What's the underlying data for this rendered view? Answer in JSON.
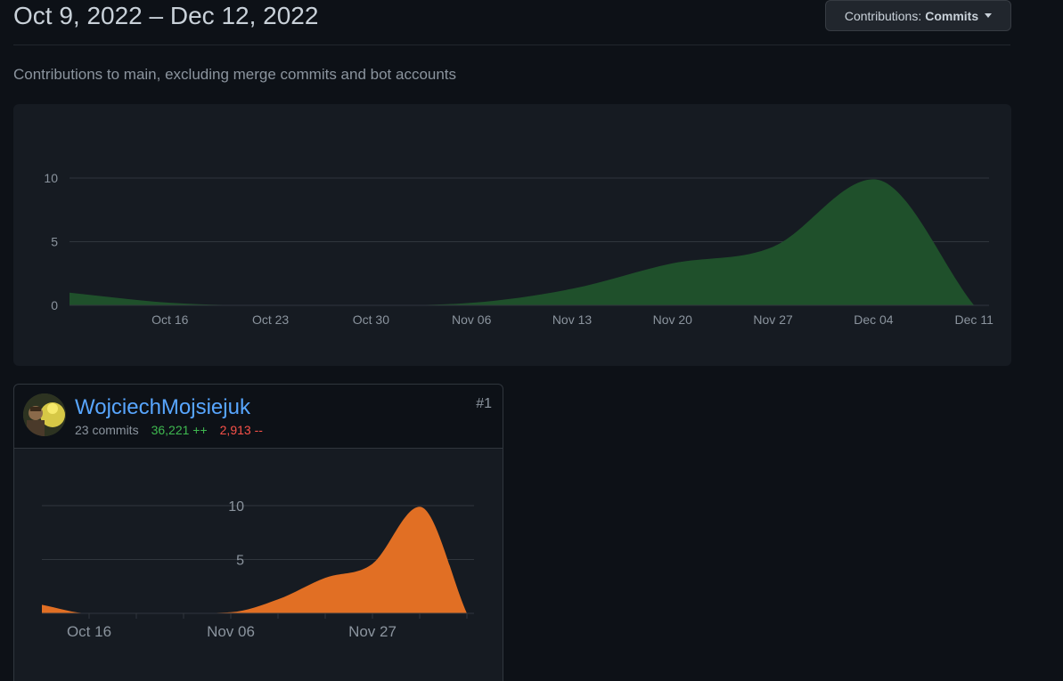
{
  "header": {
    "date_range": "Oct 9, 2022 – Dec 12, 2022",
    "filter_label": "Contributions:",
    "filter_value": "Commits"
  },
  "subtitle": "Contributions to main, excluding merge commits and bot accounts",
  "colors": {
    "main_area": "#1f502b",
    "contributor_area": "#e16f24",
    "gridline": "#30363d",
    "tick_text": "#8b949e",
    "link": "#58a6ff",
    "additions": "#3fb950",
    "deletions": "#f85149"
  },
  "contributor": {
    "name": "WojciechMojsiejuk",
    "commits": "23 commits",
    "additions": "36,221 ++",
    "deletions": "2,913 --",
    "rank": "#1",
    "avatar_icon": "user-avatar-icon"
  },
  "chart_data": [
    {
      "type": "area",
      "title": "",
      "xlabel": "",
      "ylabel": "",
      "x": [
        "Oct 09",
        "Oct 16",
        "Oct 23",
        "Oct 30",
        "Nov 06",
        "Nov 13",
        "Nov 20",
        "Nov 27",
        "Dec 04",
        "Dec 11"
      ],
      "values": [
        1,
        0.2,
        0,
        0,
        0.2,
        1.3,
        3.3,
        4.6,
        9.9,
        0
      ],
      "xticks": [
        "Oct 16",
        "Oct 23",
        "Oct 30",
        "Nov 06",
        "Nov 13",
        "Nov 20",
        "Nov 27",
        "Dec 04",
        "Dec 11"
      ],
      "yticks": [
        "0",
        "5",
        "10"
      ],
      "ylim": [
        0,
        10
      ],
      "grid": true
    },
    {
      "type": "area",
      "title": "",
      "xlabel": "",
      "ylabel": "",
      "x": [
        "Oct 09",
        "Oct 16",
        "Oct 23",
        "Oct 30",
        "Nov 06",
        "Nov 13",
        "Nov 20",
        "Nov 27",
        "Dec 04",
        "Dec 11"
      ],
      "values": [
        0.8,
        0,
        0,
        0,
        0.1,
        1.3,
        3.3,
        4.6,
        9.9,
        0
      ],
      "xticks": [
        "Oct 16",
        "Nov 06",
        "Nov 27"
      ],
      "yticks": [
        "5",
        "10"
      ],
      "ylim": [
        0,
        10
      ],
      "grid": true
    }
  ]
}
